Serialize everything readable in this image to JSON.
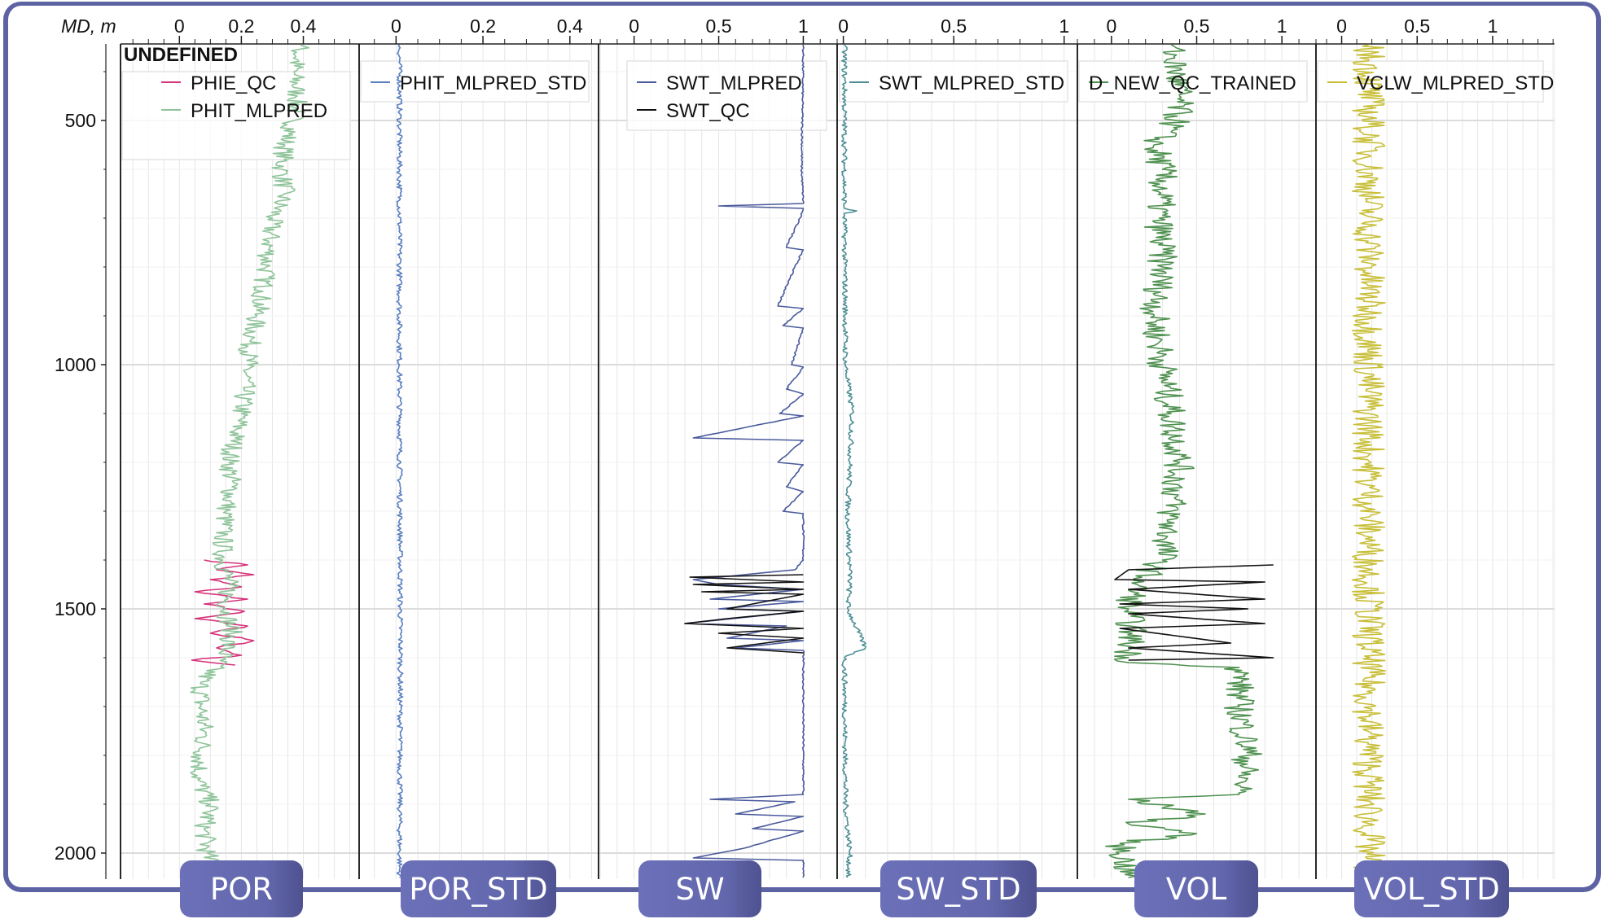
{
  "chart_data": {
    "type": "line",
    "depth_axis": {
      "label": "MD, m",
      "ticks": [
        500,
        1000,
        1500,
        2000
      ],
      "range": [
        343,
        2053
      ],
      "inverted": true
    },
    "legend_group_title": "UNDEFINED",
    "grid": true,
    "tracks": [
      {
        "label": "POR",
        "range": [
          -0.19,
          0.58
        ],
        "ticks": [
          "0",
          "0.2",
          "0.4"
        ],
        "tick_values": [
          0,
          0.2,
          0.4
        ],
        "minor_step": 0.05,
        "series": [
          {
            "name": "PHIE_QC",
            "color": "#d6337a",
            "points": [
              [
                1400,
                0.08
              ],
              [
                1410,
                0.22
              ],
              [
                1420,
                0.12
              ],
              [
                1430,
                0.24
              ],
              [
                1440,
                0.1
              ],
              [
                1455,
                0.2
              ],
              [
                1465,
                0.05
              ],
              [
                1480,
                0.22
              ],
              [
                1490,
                0.08
              ],
              [
                1505,
                0.21
              ],
              [
                1520,
                0.05
              ],
              [
                1535,
                0.22
              ],
              [
                1550,
                0.1
              ],
              [
                1565,
                0.24
              ],
              [
                1580,
                0.12
              ],
              [
                1595,
                0.2
              ],
              [
                1605,
                0.04
              ],
              [
                1615,
                0.18
              ]
            ]
          },
          {
            "name": "PHIT_MLPRED",
            "color": "#8fc49a",
            "points": [
              [
                345,
                0.39
              ],
              [
                400,
                0.37
              ],
              [
                450,
                0.38
              ],
              [
                500,
                0.37
              ],
              [
                550,
                0.34
              ],
              [
                600,
                0.33
              ],
              [
                650,
                0.34
              ],
              [
                700,
                0.3
              ],
              [
                750,
                0.29
              ],
              [
                800,
                0.28
              ],
              [
                850,
                0.27
              ],
              [
                900,
                0.25
              ],
              [
                950,
                0.23
              ],
              [
                1000,
                0.22
              ],
              [
                1050,
                0.21
              ],
              [
                1100,
                0.2
              ],
              [
                1150,
                0.18
              ],
              [
                1200,
                0.16
              ],
              [
                1250,
                0.17
              ],
              [
                1300,
                0.15
              ],
              [
                1350,
                0.14
              ],
              [
                1400,
                0.14
              ],
              [
                1450,
                0.16
              ],
              [
                1500,
                0.15
              ],
              [
                1550,
                0.17
              ],
              [
                1600,
                0.14
              ],
              [
                1650,
                0.07
              ],
              [
                1700,
                0.07
              ],
              [
                1750,
                0.08
              ],
              [
                1800,
                0.07
              ],
              [
                1850,
                0.06
              ],
              [
                1900,
                0.1
              ],
              [
                1950,
                0.08
              ],
              [
                2000,
                0.09
              ],
              [
                2050,
                0.11
              ]
            ]
          }
        ]
      },
      {
        "label": "POR_STD",
        "range": [
          -0.085,
          0.466
        ],
        "ticks": [
          "0",
          "0.2",
          "0.4"
        ],
        "tick_values": [
          0,
          0.2,
          0.4
        ],
        "minor_step": 0.05,
        "series": [
          {
            "name": "PHIT_MLPRED_STD",
            "color": "#5b7fc0",
            "points": [
              [
                345,
                0.008
              ],
              [
                1000,
                0.008
              ],
              [
                1590,
                0.01
              ],
              [
                2050,
                0.008
              ]
            ]
          }
        ]
      },
      {
        "label": "SW",
        "range": [
          -0.21,
          1.2
        ],
        "ticks": [
          "0",
          "0.5",
          "1"
        ],
        "tick_values": [
          0,
          0.5,
          1
        ],
        "minor_step": 0.1,
        "series": [
          {
            "name": "SWT_MLPRED",
            "color": "#4a5a9c",
            "points": [
              [
                345,
                1
              ],
              [
                600,
                0.99
              ],
              [
                670,
                1
              ],
              [
                675,
                0.5
              ],
              [
                680,
                1
              ],
              [
                700,
                0.98
              ],
              [
                760,
                0.9
              ],
              [
                765,
                1
              ],
              [
                800,
                0.95
              ],
              [
                880,
                0.85
              ],
              [
                885,
                1
              ],
              [
                920,
                0.88
              ],
              [
                925,
                1
              ],
              [
                1000,
                0.93
              ],
              [
                1005,
                1
              ],
              [
                1050,
                0.9
              ],
              [
                1060,
                1
              ],
              [
                1100,
                0.86
              ],
              [
                1105,
                1
              ],
              [
                1150,
                0.35
              ],
              [
                1155,
                1
              ],
              [
                1200,
                0.85
              ],
              [
                1205,
                1
              ],
              [
                1250,
                0.9
              ],
              [
                1260,
                1
              ],
              [
                1300,
                0.88
              ],
              [
                1305,
                1
              ],
              [
                1400,
                1
              ],
              [
                1420,
                0.95
              ],
              [
                1440,
                0.35
              ],
              [
                1450,
                0.5
              ],
              [
                1460,
                1
              ],
              [
                1480,
                0.45
              ],
              [
                1485,
                1
              ],
              [
                1500,
                0.5
              ],
              [
                1505,
                1
              ],
              [
                1530,
                0.3
              ],
              [
                1535,
                0.9
              ],
              [
                1560,
                0.55
              ],
              [
                1565,
                1
              ],
              [
                1580,
                0.6
              ],
              [
                1585,
                1
              ],
              [
                1620,
                1
              ],
              [
                1880,
                1
              ],
              [
                1890,
                0.45
              ],
              [
                1895,
                0.95
              ],
              [
                1920,
                0.6
              ],
              [
                1925,
                1
              ],
              [
                1950,
                0.7
              ],
              [
                1955,
                1
              ],
              [
                1990,
                0.65
              ],
              [
                2010,
                0.35
              ],
              [
                2015,
                1
              ],
              [
                2050,
                1
              ]
            ]
          },
          {
            "name": "SWT_QC",
            "color": "#111111",
            "points": [
              [
                1430,
                1
              ],
              [
                1435,
                0.33
              ],
              [
                1445,
                1
              ],
              [
                1450,
                0.35
              ],
              [
                1460,
                1
              ],
              [
                1465,
                0.4
              ],
              [
                1470,
                1
              ],
              [
                1500,
                0.55
              ],
              [
                1505,
                1
              ],
              [
                1520,
                0.55
              ],
              [
                1530,
                0.3
              ],
              [
                1540,
                1
              ],
              [
                1550,
                0.5
              ],
              [
                1560,
                1
              ],
              [
                1580,
                0.55
              ],
              [
                1590,
                1
              ]
            ]
          }
        ]
      },
      {
        "label": "SW_STD",
        "range": [
          -0.028,
          1.06
        ],
        "ticks": [
          "0",
          "0.5",
          "1"
        ],
        "tick_values": [
          0,
          0.5,
          1
        ],
        "minor_step": 0.1,
        "series": [
          {
            "name": "SWT_MLPRED_STD",
            "color": "#4e8f96",
            "points": [
              [
                345,
                0.005
              ],
              [
                680,
                0.005
              ],
              [
                685,
                0.06
              ],
              [
                690,
                0.005
              ],
              [
                1000,
                0.01
              ],
              [
                1100,
                0.04
              ],
              [
                1200,
                0.03
              ],
              [
                1300,
                0.02
              ],
              [
                1440,
                0.03
              ],
              [
                1500,
                0.02
              ],
              [
                1580,
                0.1
              ],
              [
                1600,
                0.005
              ],
              [
                1900,
                0.01
              ],
              [
                2000,
                0.03
              ],
              [
                2050,
                0.02
              ]
            ]
          }
        ]
      },
      {
        "label": "VOL",
        "range": [
          -0.2,
          1.2
        ],
        "ticks": [
          "0",
          "0.5",
          "1"
        ],
        "tick_values": [
          0,
          0.5,
          1
        ],
        "minor_step": 0.1,
        "series": [
          {
            "name": "D_NEW_QC_TRAINED",
            "color": "#4f9150",
            "points": [
              [
                345,
                0.35
              ],
              [
                450,
                0.4
              ],
              [
                500,
                0.38
              ],
              [
                550,
                0.25
              ],
              [
                600,
                0.3
              ],
              [
                700,
                0.28
              ],
              [
                800,
                0.3
              ],
              [
                900,
                0.25
              ],
              [
                1000,
                0.3
              ],
              [
                1100,
                0.35
              ],
              [
                1200,
                0.4
              ],
              [
                1300,
                0.35
              ],
              [
                1400,
                0.3
              ],
              [
                1450,
                0.15
              ],
              [
                1500,
                0.1
              ],
              [
                1550,
                0.12
              ],
              [
                1600,
                0.1
              ],
              [
                1610,
                0.1
              ],
              [
                1620,
                0.75
              ],
              [
                1700,
                0.75
              ],
              [
                1800,
                0.8
              ],
              [
                1880,
                0.75
              ],
              [
                1890,
                0.1
              ],
              [
                1920,
                0.55
              ],
              [
                1940,
                0.1
              ],
              [
                1960,
                0.5
              ],
              [
                1980,
                0.05
              ],
              [
                2050,
                0.1
              ]
            ]
          },
          {
            "name": "",
            "color": "#111111",
            "points": [
              [
                1410,
                0.95
              ],
              [
                1420,
                0.1
              ],
              [
                1440,
                0.02
              ],
              [
                1445,
                0.9
              ],
              [
                1460,
                0.1
              ],
              [
                1480,
                0.9
              ],
              [
                1490,
                0.05
              ],
              [
                1500,
                0.8
              ],
              [
                1510,
                0.1
              ],
              [
                1530,
                0.9
              ],
              [
                1540,
                0.05
              ],
              [
                1570,
                0.7
              ],
              [
                1580,
                0.1
              ],
              [
                1600,
                0.95
              ],
              [
                1605,
                0.1
              ]
            ]
          }
        ]
      },
      {
        "label": "VOL_STD",
        "range": [
          -0.17,
          1.41
        ],
        "ticks": [
          "0",
          "0.5",
          "1"
        ],
        "tick_values": [
          0,
          0.5,
          1
        ],
        "minor_step": 0.1,
        "series": [
          {
            "name": "VCLW_MLPRED_STD",
            "color": "#c8bf3a",
            "points": [
              [
                345,
                0.18
              ],
              [
                2050,
                0.18
              ]
            ]
          }
        ]
      }
    ]
  }
}
